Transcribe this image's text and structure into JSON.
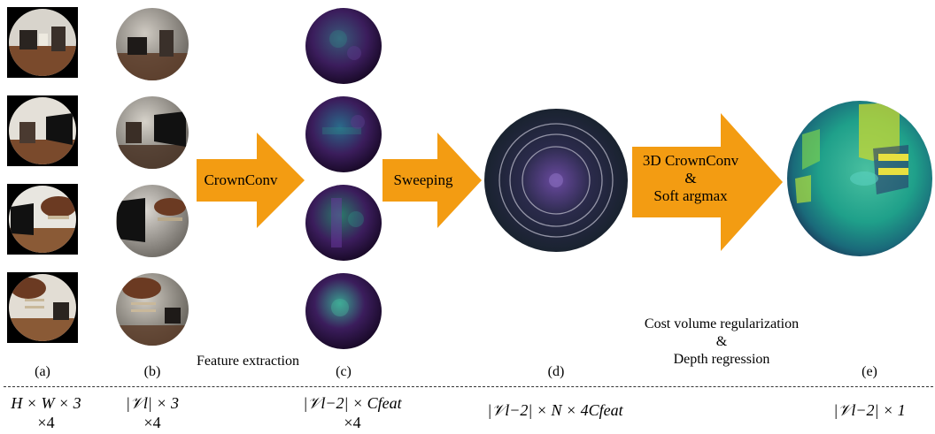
{
  "arrows": {
    "feature": "CrownConv",
    "sweep": "Sweeping",
    "regularize_line1": "3D CrownConv",
    "regularize_line2": "&",
    "regularize_line3": "Soft argmax"
  },
  "stage_labels": {
    "feature_extraction": "Feature extraction",
    "cost_line1": "Cost volume regularization",
    "cost_line2": "&",
    "cost_line3": "Depth regression"
  },
  "panel_labels": [
    "(a)",
    "(b)",
    "(c)",
    "(d)",
    "(e)"
  ],
  "dimensions": {
    "a_line1": "H × W × 3",
    "a_line2": "×4",
    "b_line1": "|𝒱l| × 3",
    "b_line2": "×4",
    "c_line1": "|𝒱l−2| × Cfeat",
    "c_line2": "×4",
    "d_line1": "|𝒱l−2| × N × 4Cfeat",
    "e_line1": "|𝒱l−2| × 1"
  },
  "colors": {
    "arrow": "#f39c12",
    "feature_sphere": "#3b1d5c",
    "cost_volume": "#2a2a4a",
    "depth_sphere": "#1fa08a"
  }
}
